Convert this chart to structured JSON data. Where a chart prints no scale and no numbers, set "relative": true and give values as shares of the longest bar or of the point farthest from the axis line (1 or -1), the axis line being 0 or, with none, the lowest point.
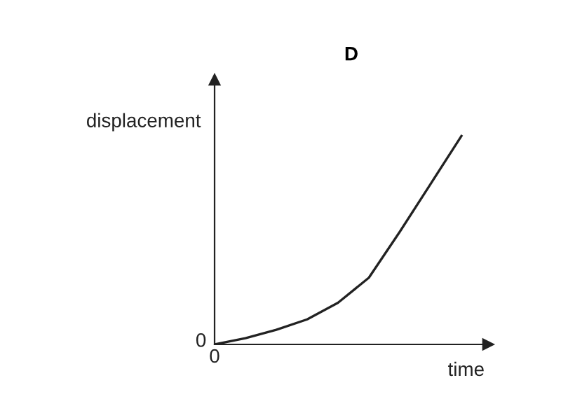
{
  "chart_data": {
    "type": "line",
    "title": "D",
    "xlabel": "time",
    "ylabel": "displacement",
    "relative": true,
    "categories": [
      null,
      null,
      null,
      null,
      null,
      null,
      null,
      null,
      null
    ],
    "series": [
      {
        "color": "#222222",
        "values": [
          0,
          0.03,
          0.07,
          0.12,
          0.2,
          0.32,
          0.54,
          0.77,
          1
        ]
      }
    ],
    "annotations": [
      "0",
      "0"
    ],
    "legend": false,
    "marker": "none",
    "line_style": "solid"
  }
}
